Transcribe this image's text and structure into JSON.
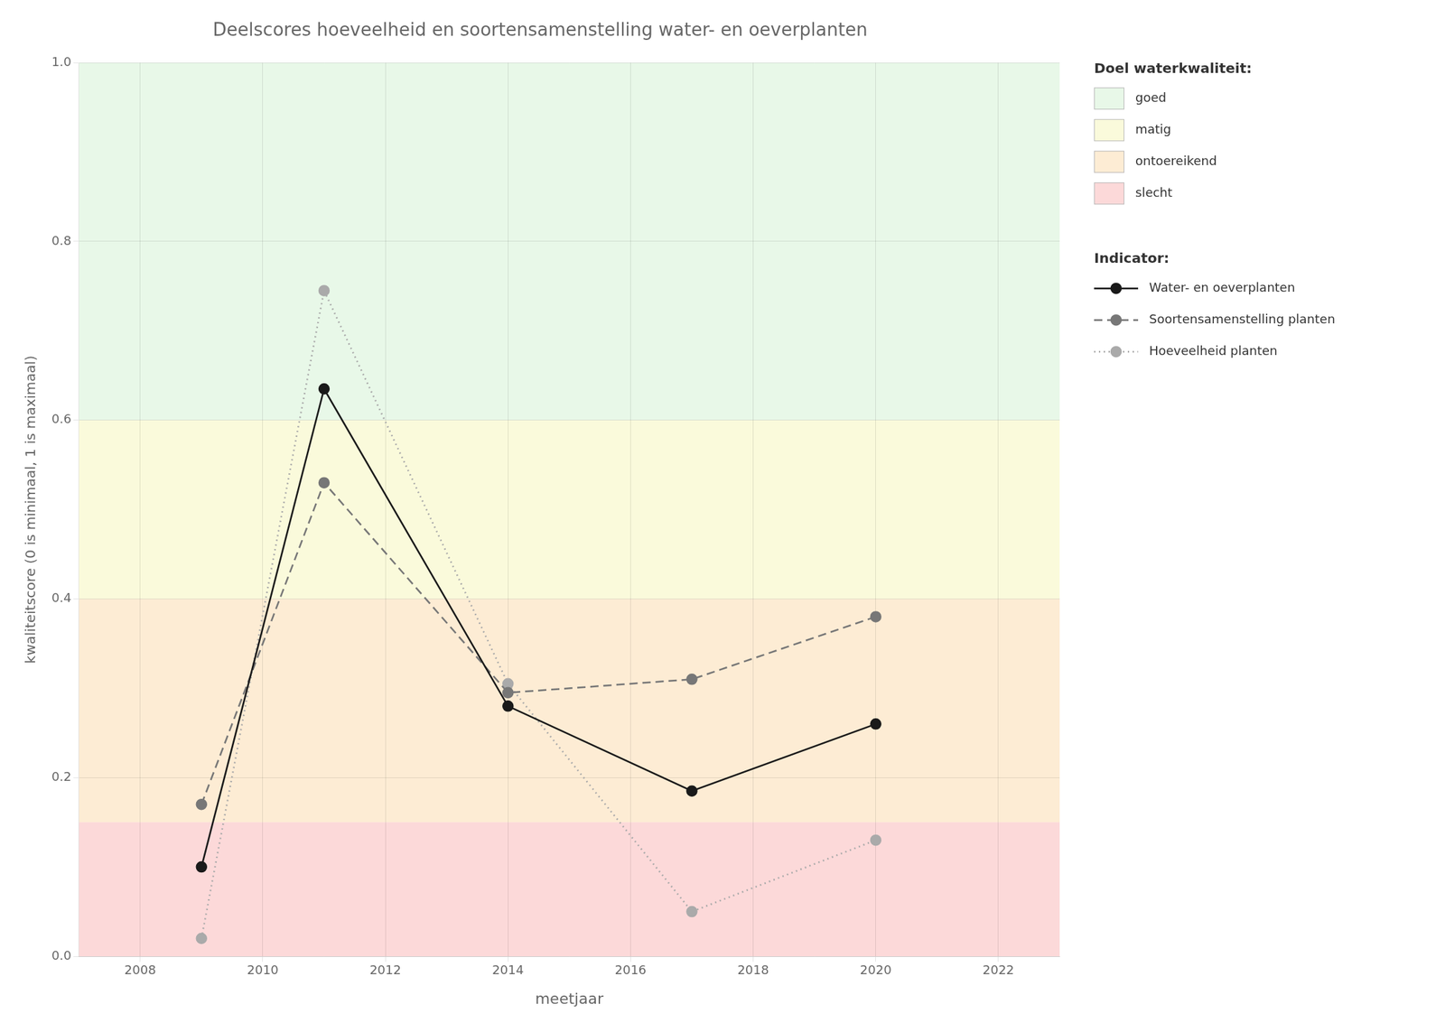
{
  "chart_data": {
    "type": "line",
    "title": "Deelscores hoeveelheid en soortensamenstelling water- en oeverplanten",
    "xlabel": "meetjaar",
    "ylabel": "kwaliteitscore (0 is minimaal, 1 is maximaal)",
    "xlim": [
      2007,
      2023
    ],
    "ylim": [
      0.0,
      1.0
    ],
    "xticks": [
      2008,
      2010,
      2012,
      2014,
      2016,
      2018,
      2020,
      2022
    ],
    "yticks": [
      {
        "value": 0.0,
        "label": "0.0"
      },
      0.2,
      0.4,
      0.6,
      0.8,
      {
        "value": 1.0,
        "label": "1.0"
      }
    ],
    "grid": true,
    "legend": "right",
    "x": [
      2009,
      2011,
      2014,
      2017,
      2020
    ],
    "legend_title": "Indicator:",
    "series": [
      {
        "name": "Water- en oeverplanten",
        "color": "#1a1a1a",
        "line_style": "solid",
        "marker": "circle",
        "values": [
          0.1,
          0.635,
          0.28,
          0.185,
          0.26
        ]
      },
      {
        "name": "Soortensamenstelling planten",
        "color": "#777777",
        "line_style": "dashed",
        "marker": "circle",
        "values": [
          0.17,
          0.53,
          0.295,
          0.31,
          0.38
        ]
      },
      {
        "name": "Hoeveelheid planten",
        "color": "#aaaaaa",
        "line_style": "dotted",
        "marker": "circle",
        "values": [
          0.02,
          0.745,
          0.305,
          0.05,
          0.13
        ]
      }
    ],
    "bands_title": "Doel waterkwaliteit:",
    "bands": [
      {
        "name": "goed",
        "ymin": 0.6,
        "ymax": 1.0,
        "color": "#e8f8e8"
      },
      {
        "name": "matig",
        "ymin": 0.4,
        "ymax": 0.6,
        "color": "#fafadb"
      },
      {
        "name": "ontoereikend",
        "ymin": 0.15,
        "ymax": 0.4,
        "color": "#fdecd4"
      },
      {
        "name": "slecht",
        "ymin": 0.0,
        "ymax": 0.15,
        "color": "#fcd9d9"
      }
    ]
  }
}
